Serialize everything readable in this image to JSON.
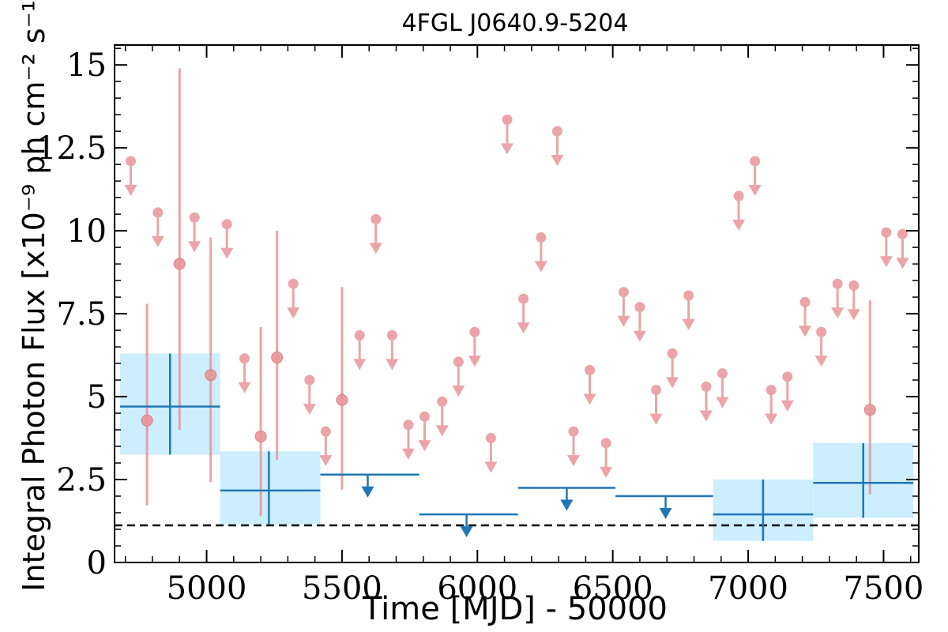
{
  "chart_data": {
    "type": "scatter",
    "title": "4FGL J0640.9-5204",
    "xlabel": "Time [MJD] - 50000",
    "ylabel": "Integral Photon Flux [x10⁻⁹ ph cm⁻² s⁻¹]",
    "xlim": [
      4660,
      7630
    ],
    "ylim": [
      0,
      15.6
    ],
    "x_ticks": [
      5000,
      5500,
      6000,
      6500,
      7000,
      7500
    ],
    "x_tick_labels": [
      "5000",
      "5500",
      "6000",
      "6500",
      "7000",
      "7500"
    ],
    "y_ticks": [
      0,
      2.5,
      5,
      7.5,
      10,
      12.5,
      15
    ],
    "y_tick_labels": [
      "0",
      "2.5",
      "5",
      "7.5",
      "10",
      "12.5",
      "15"
    ],
    "baseline": 1.12,
    "colors": {
      "short_bins": "#e8959a",
      "long_bins": "#1f77b4",
      "long_bin_band": "#cceeff",
      "baseline": "#000000"
    },
    "series": [
      {
        "kind": "short-bins-detections",
        "points": [
          {
            "x": 4780,
            "y": 4.28,
            "lo": 1.72,
            "hi": 7.8
          },
          {
            "x": 4900,
            "y": 9.0,
            "lo": 4.0,
            "hi": 14.9
          },
          {
            "x": 5015,
            "y": 5.65,
            "lo": 2.42,
            "hi": 9.8
          },
          {
            "x": 5200,
            "y": 3.8,
            "lo": 1.4,
            "hi": 7.1
          },
          {
            "x": 5260,
            "y": 6.18,
            "lo": 3.1,
            "hi": 10.0
          },
          {
            "x": 5500,
            "y": 4.9,
            "lo": 2.2,
            "hi": 8.3
          },
          {
            "x": 7450,
            "y": 4.6,
            "lo": 2.05,
            "hi": 7.9
          }
        ]
      },
      {
        "kind": "short-bins-upper-limits",
        "points": [
          {
            "x": 4720,
            "y": 12.1
          },
          {
            "x": 4820,
            "y": 10.55
          },
          {
            "x": 4955,
            "y": 10.4
          },
          {
            "x": 5075,
            "y": 10.2
          },
          {
            "x": 5140,
            "y": 6.15
          },
          {
            "x": 5320,
            "y": 8.4
          },
          {
            "x": 5380,
            "y": 5.5
          },
          {
            "x": 5440,
            "y": 3.95
          },
          {
            "x": 5565,
            "y": 6.85
          },
          {
            "x": 5625,
            "y": 10.35
          },
          {
            "x": 5685,
            "y": 6.85
          },
          {
            "x": 5745,
            "y": 4.15
          },
          {
            "x": 5805,
            "y": 4.4
          },
          {
            "x": 5870,
            "y": 4.85
          },
          {
            "x": 5930,
            "y": 6.05
          },
          {
            "x": 5990,
            "y": 6.95
          },
          {
            "x": 6050,
            "y": 3.75
          },
          {
            "x": 6110,
            "y": 13.35
          },
          {
            "x": 6170,
            "y": 7.95
          },
          {
            "x": 6235,
            "y": 9.8
          },
          {
            "x": 6295,
            "y": 13.0
          },
          {
            "x": 6355,
            "y": 3.95
          },
          {
            "x": 6415,
            "y": 5.8
          },
          {
            "x": 6475,
            "y": 3.6
          },
          {
            "x": 6540,
            "y": 8.15
          },
          {
            "x": 6600,
            "y": 7.7
          },
          {
            "x": 6660,
            "y": 5.2
          },
          {
            "x": 6720,
            "y": 6.3
          },
          {
            "x": 6780,
            "y": 8.05
          },
          {
            "x": 6845,
            "y": 5.3
          },
          {
            "x": 6905,
            "y": 5.7
          },
          {
            "x": 6965,
            "y": 11.05
          },
          {
            "x": 7025,
            "y": 12.1
          },
          {
            "x": 7085,
            "y": 5.2
          },
          {
            "x": 7145,
            "y": 5.6
          },
          {
            "x": 7210,
            "y": 7.85
          },
          {
            "x": 7270,
            "y": 6.95
          },
          {
            "x": 7330,
            "y": 8.4
          },
          {
            "x": 7390,
            "y": 8.35
          },
          {
            "x": 7510,
            "y": 9.95
          },
          {
            "x": 7570,
            "y": 9.9
          }
        ]
      },
      {
        "kind": "long-bins-detections",
        "points": [
          {
            "x": 4865,
            "x0": 4680,
            "x1": 5050,
            "y": 4.7,
            "lo": 3.25,
            "hi": 6.3
          },
          {
            "x": 5230,
            "x0": 5050,
            "x1": 5420,
            "y": 2.17,
            "lo": 1.15,
            "hi": 3.35
          },
          {
            "x": 7055,
            "x0": 6870,
            "x1": 7240,
            "y": 1.45,
            "lo": 0.65,
            "hi": 2.5
          },
          {
            "x": 7425,
            "x0": 7240,
            "x1": 7610,
            "y": 2.4,
            "lo": 1.35,
            "hi": 3.6
          }
        ]
      },
      {
        "kind": "long-bins-upper-limits",
        "points": [
          {
            "x": 5595,
            "x0": 5420,
            "x1": 5785,
            "y": 2.65
          },
          {
            "x": 5960,
            "x0": 5785,
            "x1": 6150,
            "y": 1.45
          },
          {
            "x": 6330,
            "x0": 6150,
            "x1": 6510,
            "y": 2.25
          },
          {
            "x": 6695,
            "x0": 6510,
            "x1": 6870,
            "y": 2.0
          }
        ]
      }
    ]
  }
}
